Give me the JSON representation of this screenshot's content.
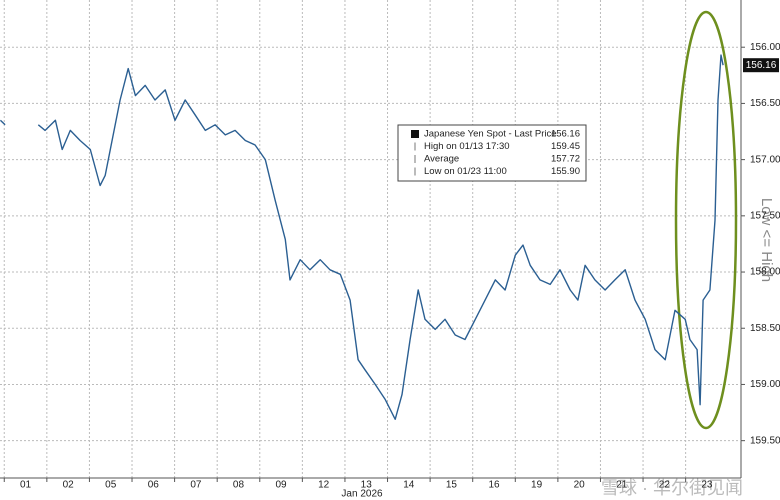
{
  "chart_data": {
    "type": "line",
    "x_label": "Jan 2026",
    "y_label": "Low <= High",
    "watermark": "雪球 · 华尔街见闻",
    "y_inverted": true,
    "grid": true,
    "xlim": [
      -0.1,
      17.3
    ],
    "ylim": [
      155.58,
      159.85
    ],
    "xticks": [
      {
        "value": 0,
        "label": "01"
      },
      {
        "value": 1,
        "label": "02"
      },
      {
        "value": 2,
        "label": "05"
      },
      {
        "value": 3,
        "label": "06"
      },
      {
        "value": 4,
        "label": "07"
      },
      {
        "value": 5,
        "label": "08"
      },
      {
        "value": 6,
        "label": "09"
      },
      {
        "value": 7,
        "label": "12"
      },
      {
        "value": 8,
        "label": "13"
      },
      {
        "value": 9,
        "label": "14"
      },
      {
        "value": 10,
        "label": "15"
      },
      {
        "value": 11,
        "label": "16"
      },
      {
        "value": 12,
        "label": "19"
      },
      {
        "value": 13,
        "label": "20"
      },
      {
        "value": 14,
        "label": "21"
      },
      {
        "value": 15,
        "label": "22"
      },
      {
        "value": 16,
        "label": "23"
      }
    ],
    "yticks": [
      {
        "value": 156,
        "label": "156.00"
      },
      {
        "value": 156.5,
        "label": "156.50"
      },
      {
        "value": 157,
        "label": "157.00"
      },
      {
        "value": 157.5,
        "label": "157.50"
      },
      {
        "value": 158,
        "label": "158.00"
      },
      {
        "value": 158.5,
        "label": "158.50"
      },
      {
        "value": 159,
        "label": "159.00"
      },
      {
        "value": 159.5,
        "label": "159.50"
      }
    ],
    "last_price": 156.16,
    "stats": [
      {
        "label": "High on 01/13 17:30",
        "value": 159.45
      },
      {
        "label": "Average",
        "value": 157.72
      },
      {
        "label": "Low on 01/23 11:00",
        "value": 155.9,
        "value_label": "155.90"
      }
    ],
    "x": [
      -0.09,
      0.02,
      null,
      0.8,
      0.96,
      1.2,
      1.36,
      1.55,
      1.78,
      2.02,
      2.25,
      2.37,
      2.49,
      2.72,
      2.91,
      3.08,
      3.31,
      3.54,
      3.78,
      4.01,
      4.25,
      4.48,
      4.72,
      4.95,
      5.19,
      5.42,
      5.66,
      5.89,
      6.13,
      6.36,
      6.6,
      6.71,
      6.95,
      7.18,
      7.42,
      7.65,
      7.89,
      8.12,
      8.31,
      8.47,
      8.71,
      8.94,
      9.18,
      9.34,
      9.53,
      9.72,
      9.88,
      10.12,
      10.35,
      10.59,
      10.82,
      11.06,
      11.29,
      11.53,
      11.76,
      12.0,
      12.18,
      12.35,
      12.58,
      12.82,
      13.05,
      13.29,
      13.47,
      13.64,
      13.87,
      14.11,
      14.34,
      14.58,
      14.81,
      15.05,
      15.28,
      15.52,
      15.75,
      15.99,
      16.1,
      16.27,
      16.34,
      16.41,
      16.57,
      16.69,
      16.76,
      16.83,
      16.88
    ],
    "series": [
      {
        "name": "Japanese Yen Spot - Last Price",
        "color": "#2b5f92",
        "values": [
          156.65,
          156.69,
          null,
          156.69,
          156.74,
          156.65,
          156.91,
          156.74,
          156.83,
          156.91,
          157.23,
          157.14,
          156.91,
          156.47,
          156.19,
          156.43,
          156.34,
          156.47,
          156.38,
          156.65,
          156.47,
          156.6,
          156.74,
          156.69,
          156.78,
          156.74,
          156.83,
          156.87,
          157.0,
          157.36,
          157.71,
          158.07,
          157.89,
          157.98,
          157.89,
          157.98,
          158.02,
          158.25,
          158.78,
          158.87,
          159.0,
          159.13,
          159.31,
          159.09,
          158.6,
          158.16,
          158.42,
          158.51,
          158.42,
          158.56,
          158.6,
          158.42,
          158.25,
          158.07,
          158.16,
          157.85,
          157.76,
          157.94,
          158.07,
          158.11,
          157.98,
          158.16,
          158.25,
          157.94,
          158.07,
          158.16,
          158.07,
          157.98,
          158.25,
          158.42,
          158.69,
          158.78,
          158.34,
          158.42,
          158.6,
          158.69,
          159.18,
          158.25,
          158.16,
          157.54,
          156.47,
          156.07,
          156.16
        ]
      }
    ]
  }
}
